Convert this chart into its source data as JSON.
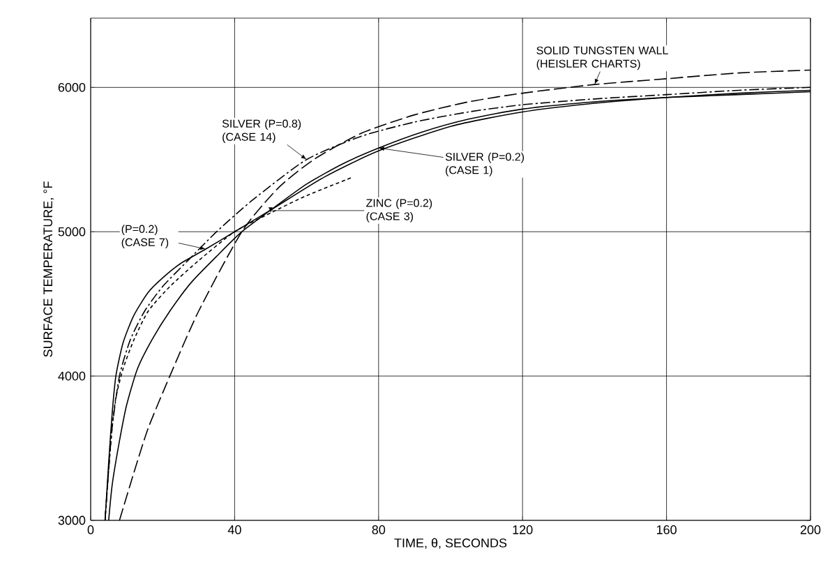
{
  "chart_data": {
    "type": "line",
    "xlabel": "TIME, θ, SECONDS",
    "ylabel": "SURFACE TEMPERATURE, °F",
    "xlim": [
      0,
      200
    ],
    "ylim": [
      3000,
      6480
    ],
    "xticks": [
      0,
      40,
      80,
      120,
      160,
      200
    ],
    "yticks": [
      3000,
      4000,
      5000,
      6000
    ],
    "grid": true,
    "series": [
      {
        "name": "SOLID TUNGSTEN WALL (HEISLER CHARTS)",
        "color": "#000000",
        "line_style": "dashed",
        "x": [
          8,
          12,
          16,
          22,
          30,
          42,
          52,
          62,
          75,
          90,
          105,
          120,
          140,
          160,
          180,
          200
        ],
        "values": [
          3000,
          3330,
          3640,
          4000,
          4450,
          5000,
          5300,
          5500,
          5680,
          5810,
          5900,
          5960,
          6020,
          6060,
          6100,
          6120
        ]
      },
      {
        "name": "SILVER (P=0.8) (CASE 14)",
        "color": "#000000",
        "line_style": "dashdot",
        "x": [
          4,
          5,
          6,
          8,
          11,
          15,
          20,
          27,
          35,
          45,
          60,
          75,
          90,
          105,
          120,
          140,
          160,
          180,
          200
        ],
        "values": [
          3000,
          3350,
          3650,
          4000,
          4250,
          4450,
          4620,
          4800,
          5000,
          5220,
          5500,
          5660,
          5760,
          5830,
          5880,
          5920,
          5950,
          5980,
          6000
        ]
      },
      {
        "name": "(P=0.2) (CASE 7)",
        "color": "#000000",
        "line_style": "solid",
        "x": [
          4,
          5,
          6,
          7,
          9,
          12,
          16,
          20,
          25,
          32,
          40,
          50,
          65,
          80,
          100,
          120,
          140,
          160,
          180,
          200
        ],
        "values": [
          3000,
          3400,
          3750,
          4000,
          4230,
          4420,
          4580,
          4680,
          4780,
          4880,
          5000,
          5150,
          5380,
          5560,
          5730,
          5830,
          5890,
          5930,
          5960,
          5980
        ]
      },
      {
        "name": "ZINC (P=0.2) (CASE 3)",
        "color": "#000000",
        "line_style": "dotted",
        "x": [
          4,
          5,
          6,
          7,
          9,
          12,
          16,
          22,
          30,
          40,
          50,
          60,
          73
        ],
        "values": [
          3000,
          3350,
          3650,
          3850,
          4050,
          4250,
          4450,
          4620,
          4800,
          5000,
          5130,
          5250,
          5380
        ]
      },
      {
        "name": "SILVER (P=0.2) (CASE 1)",
        "color": "#000000",
        "line_style": "solid",
        "x": [
          5,
          6,
          8,
          10,
          13,
          17,
          22,
          28,
          35,
          42,
          50,
          60,
          70,
          80,
          92,
          105,
          120,
          140,
          160,
          180,
          200
        ],
        "values": [
          3000,
          3250,
          3550,
          3800,
          4050,
          4250,
          4450,
          4650,
          4830,
          5000,
          5150,
          5330,
          5470,
          5580,
          5690,
          5780,
          5850,
          5900,
          5930,
          5950,
          5970
        ]
      }
    ]
  }
}
